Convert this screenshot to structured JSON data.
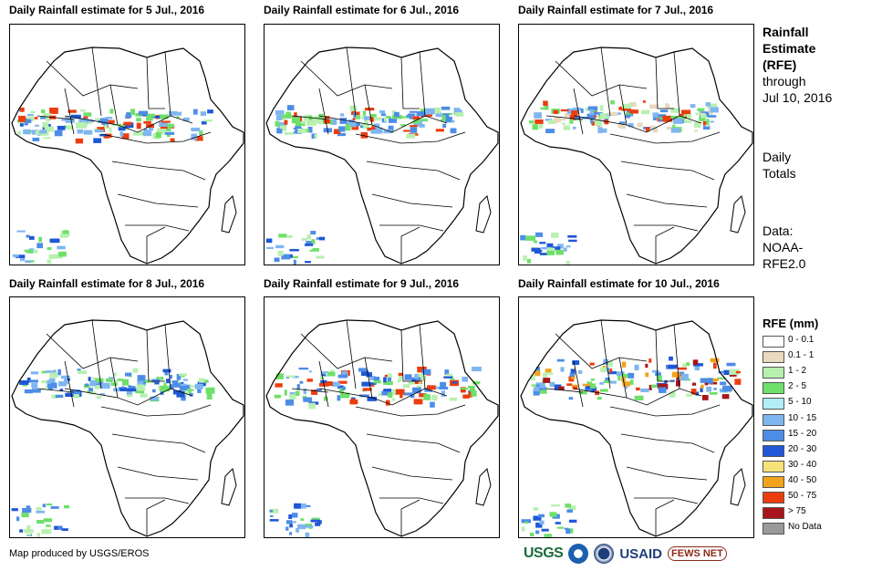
{
  "panels": [
    {
      "title": "Daily Rainfall estimate for 5 Jul., 2016"
    },
    {
      "title": "Daily Rainfall estimate for 6 Jul., 2016"
    },
    {
      "title": "Daily Rainfall estimate for 7 Jul., 2016"
    },
    {
      "title": "Daily Rainfall estimate for 8 Jul., 2016"
    },
    {
      "title": "Daily Rainfall estimate for 9 Jul., 2016"
    },
    {
      "title": "Daily Rainfall estimate for 10 Jul., 2016"
    }
  ],
  "side": {
    "title_line1": "Rainfall",
    "title_line2": "Estimate",
    "title_line3": "(RFE)",
    "through": "through",
    "date": "Jul 10, 2016",
    "totals_line1": "Daily",
    "totals_line2": "Totals",
    "data_line1": "Data:",
    "data_line2": "NOAA-",
    "data_line3": "RFE2.0"
  },
  "legend": {
    "title": "RFE (mm)",
    "items": [
      {
        "label": "0 - 0.1",
        "color": "#ffffff"
      },
      {
        "label": "0.1 - 1",
        "color": "#e8d9bf"
      },
      {
        "label": "1 - 2",
        "color": "#b8f0b0"
      },
      {
        "label": "2 - 5",
        "color": "#6ee06a"
      },
      {
        "label": "5 - 10",
        "color": "#b3eef7"
      },
      {
        "label": "10 - 15",
        "color": "#7fb6f0"
      },
      {
        "label": "15 - 20",
        "color": "#4d8de6"
      },
      {
        "label": "20 - 30",
        "color": "#1f57d6"
      },
      {
        "label": "30 - 40",
        "color": "#f7e27a"
      },
      {
        "label": "40 - 50",
        "color": "#f2a31c"
      },
      {
        "label": "50 - 75",
        "color": "#ec3d0f"
      },
      {
        "label": "> 75",
        "color": "#a8161b"
      },
      {
        "label": "No Data",
        "color": "#9a9a9a"
      }
    ]
  },
  "credit": "Map produced by USGS/EROS",
  "logos": {
    "usgs": "USGS",
    "usaid": "USAID",
    "fews": "FEWS NET"
  }
}
